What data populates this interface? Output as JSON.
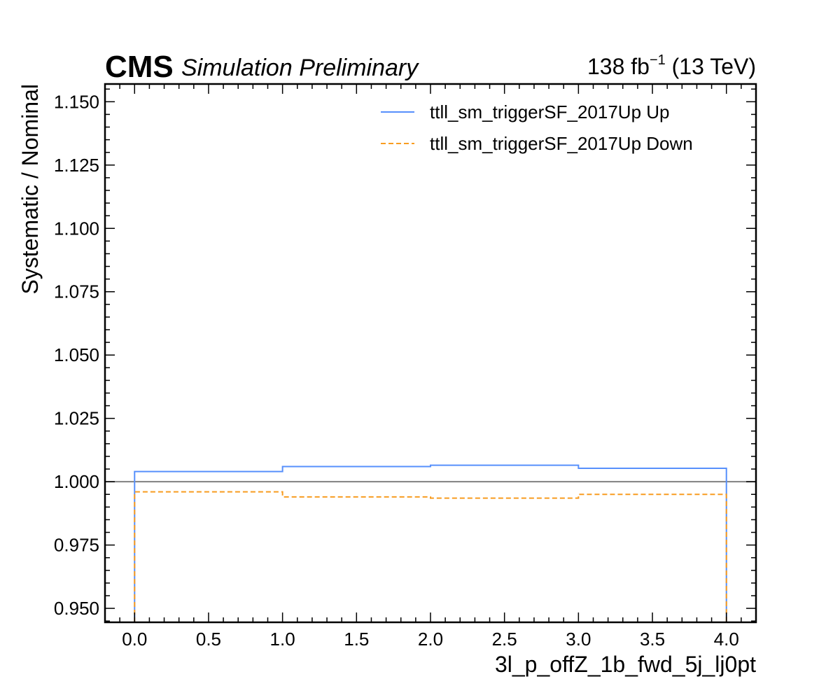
{
  "header": {
    "experiment": "CMS",
    "status": "Simulation Preliminary",
    "lumi_value": "138 fb",
    "lumi_exponent": "−1",
    "energy": " (13 TeV)"
  },
  "chart_data": {
    "type": "line",
    "drawstyle": "steps",
    "xlabel": "3l_p_offZ_1b_fwd_5j_lj0pt",
    "ylabel": "Systematic / Nominal",
    "xlim": [
      -0.2,
      4.2
    ],
    "ylim": [
      0.9445,
      1.157
    ],
    "x_major_ticks": [
      0.0,
      0.5,
      1.0,
      1.5,
      2.0,
      2.5,
      3.0,
      3.5,
      4.0
    ],
    "x_tick_labels": [
      "0.0",
      "0.5",
      "1.0",
      "1.5",
      "2.0",
      "2.5",
      "3.0",
      "3.5",
      "4.0"
    ],
    "y_major_ticks": [
      0.95,
      0.975,
      1.0,
      1.025,
      1.05,
      1.075,
      1.1,
      1.125,
      1.15
    ],
    "y_tick_labels": [
      "0.950",
      "0.975",
      "1.000",
      "1.025",
      "1.050",
      "1.075",
      "1.100",
      "1.125",
      "1.150"
    ],
    "bin_edges": [
      0,
      1,
      2,
      3,
      4
    ],
    "reference_line": 1.0,
    "grid": false,
    "legend_position": "top-right",
    "series": [
      {
        "name": "ttll_sm_triggerSF_2017Up Up",
        "values": [
          1.004,
          1.006,
          1.0065,
          1.0053
        ],
        "color": "#5790fc",
        "linestyle": "solid"
      },
      {
        "name": "ttll_sm_triggerSF_2017Up Down",
        "values": [
          0.996,
          0.994,
          0.9935,
          0.995
        ],
        "color": "#f89c20",
        "linestyle": "dashed"
      }
    ],
    "reference_color": "#808080"
  }
}
